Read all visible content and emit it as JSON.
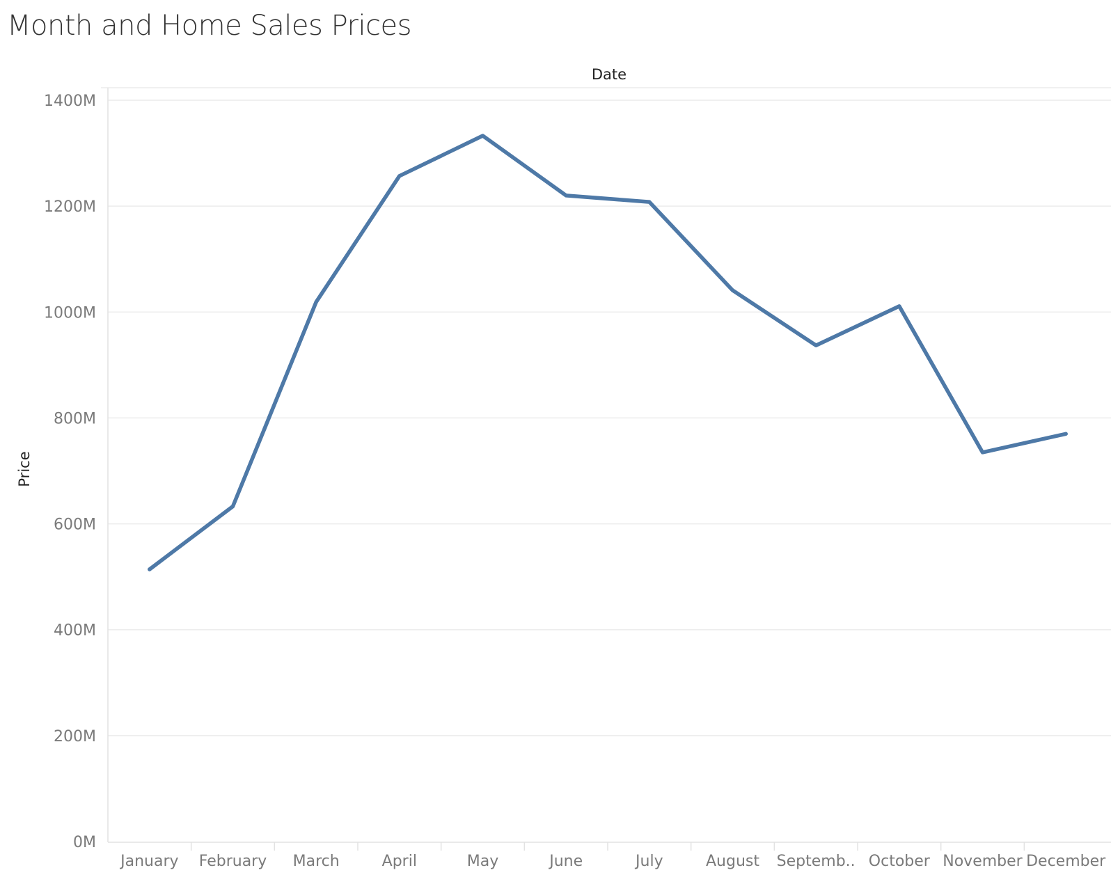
{
  "title": "Month and Home Sales Prices",
  "colors": {
    "series": "#4e79a7",
    "background": "#ffffff",
    "gridline": "#ececec"
  },
  "chart_data": {
    "type": "line",
    "title": "Month and Home Sales Prices",
    "xlabel": "Date",
    "ylabel": "Price",
    "categories": [
      "January",
      "February",
      "March",
      "April",
      "May",
      "June",
      "July",
      "August",
      "Septemb..",
      "October",
      "November",
      "December"
    ],
    "y_ticks": [
      "0M",
      "200M",
      "400M",
      "600M",
      "800M",
      "1000M",
      "1200M",
      "1400M"
    ],
    "ylim": [
      0,
      1400
    ],
    "y_unit": "M",
    "grid": true,
    "legend": "none",
    "series": [
      {
        "values": [
          514,
          633,
          1019,
          1257,
          1333,
          1220,
          1208,
          1041,
          937,
          1011,
          735,
          770
        ]
      }
    ]
  }
}
